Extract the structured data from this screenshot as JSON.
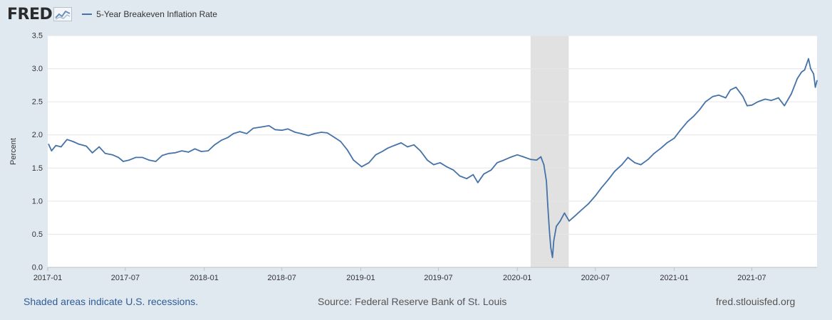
{
  "header": {
    "logo_text": "FRED",
    "legend_label": "5-Year Breakeven Inflation Rate"
  },
  "footer": {
    "recession_note": "Shaded areas indicate U.S. recessions.",
    "source": "Source: Federal Reserve Bank of St. Louis",
    "site": "fred.stlouisfed.org"
  },
  "colors": {
    "background": "#e1e9f0",
    "plot_background": "#ffffff",
    "series": "#4572a7",
    "recession_shade": "#e1e1e1",
    "link": "#2f5b97"
  },
  "chart_data": {
    "type": "line",
    "title": "",
    "xlabel": "",
    "ylabel": "Percent",
    "ylim": [
      0,
      3.5
    ],
    "yticks": [
      "0.0",
      "0.5",
      "1.0",
      "1.5",
      "2.0",
      "2.5",
      "3.0",
      "3.5"
    ],
    "xlim": [
      "2017-01-01",
      "2021-11-30"
    ],
    "xticks": [
      "2017-01",
      "2017-07",
      "2018-01",
      "2018-07",
      "2019-01",
      "2019-07",
      "2020-01",
      "2020-07",
      "2021-01",
      "2021-07"
    ],
    "grid": "horizontal",
    "legend": "top-left",
    "recessions": [
      {
        "start": "2020-02-01",
        "end": "2020-04-30"
      }
    ],
    "series": [
      {
        "name": "5-Year Breakeven Inflation Rate",
        "color": "#4572a7",
        "x": [
          "2017-01-03",
          "2017-01-10",
          "2017-01-20",
          "2017-02-01",
          "2017-02-15",
          "2017-03-01",
          "2017-03-15",
          "2017-04-01",
          "2017-04-15",
          "2017-05-01",
          "2017-05-15",
          "2017-06-01",
          "2017-06-15",
          "2017-06-26",
          "2017-07-10",
          "2017-07-25",
          "2017-08-10",
          "2017-08-25",
          "2017-09-10",
          "2017-09-25",
          "2017-10-10",
          "2017-10-25",
          "2017-11-10",
          "2017-11-25",
          "2017-12-10",
          "2017-12-25",
          "2018-01-10",
          "2018-01-25",
          "2018-02-10",
          "2018-02-25",
          "2018-03-10",
          "2018-03-25",
          "2018-04-10",
          "2018-04-25",
          "2018-05-15",
          "2018-06-01",
          "2018-06-15",
          "2018-07-01",
          "2018-07-15",
          "2018-08-01",
          "2018-08-15",
          "2018-09-01",
          "2018-09-15",
          "2018-10-01",
          "2018-10-15",
          "2018-11-01",
          "2018-11-15",
          "2018-12-01",
          "2018-12-15",
          "2019-01-03",
          "2019-01-20",
          "2019-02-05",
          "2019-02-20",
          "2019-03-05",
          "2019-03-20",
          "2019-04-05",
          "2019-04-20",
          "2019-05-05",
          "2019-05-20",
          "2019-06-05",
          "2019-06-20",
          "2019-07-05",
          "2019-07-20",
          "2019-08-05",
          "2019-08-20",
          "2019-09-05",
          "2019-09-20",
          "2019-10-01",
          "2019-10-15",
          "2019-11-01",
          "2019-11-15",
          "2019-12-01",
          "2019-12-15",
          "2020-01-01",
          "2020-01-15",
          "2020-02-01",
          "2020-02-15",
          "2020-02-25",
          "2020-03-03",
          "2020-03-09",
          "2020-03-12",
          "2020-03-16",
          "2020-03-19",
          "2020-03-23",
          "2020-03-26",
          "2020-04-01",
          "2020-04-10",
          "2020-04-20",
          "2020-05-01",
          "2020-05-15",
          "2020-06-01",
          "2020-06-15",
          "2020-07-01",
          "2020-07-15",
          "2020-08-01",
          "2020-08-15",
          "2020-09-01",
          "2020-09-15",
          "2020-10-01",
          "2020-10-15",
          "2020-11-01",
          "2020-11-15",
          "2020-12-01",
          "2020-12-15",
          "2021-01-01",
          "2021-01-15",
          "2021-02-01",
          "2021-02-15",
          "2021-03-01",
          "2021-03-15",
          "2021-04-01",
          "2021-04-15",
          "2021-05-01",
          "2021-05-12",
          "2021-05-25",
          "2021-06-10",
          "2021-06-20",
          "2021-07-01",
          "2021-07-15",
          "2021-08-01",
          "2021-08-15",
          "2021-09-01",
          "2021-09-15",
          "2021-10-01",
          "2021-10-15",
          "2021-10-25",
          "2021-11-01",
          "2021-11-10",
          "2021-11-15",
          "2021-11-22",
          "2021-11-26",
          "2021-11-30"
        ],
        "values": [
          1.86,
          1.76,
          1.84,
          1.82,
          1.93,
          1.9,
          1.86,
          1.83,
          1.73,
          1.82,
          1.72,
          1.7,
          1.66,
          1.6,
          1.62,
          1.66,
          1.66,
          1.62,
          1.6,
          1.69,
          1.72,
          1.73,
          1.76,
          1.74,
          1.79,
          1.75,
          1.76,
          1.85,
          1.92,
          1.96,
          2.02,
          2.05,
          2.02,
          2.1,
          2.12,
          2.14,
          2.08,
          2.07,
          2.09,
          2.04,
          2.02,
          1.99,
          2.02,
          2.04,
          2.03,
          1.96,
          1.9,
          1.77,
          1.62,
          1.52,
          1.58,
          1.7,
          1.75,
          1.8,
          1.84,
          1.88,
          1.82,
          1.85,
          1.76,
          1.62,
          1.55,
          1.58,
          1.52,
          1.47,
          1.38,
          1.34,
          1.4,
          1.28,
          1.41,
          1.47,
          1.58,
          1.62,
          1.66,
          1.7,
          1.67,
          1.63,
          1.62,
          1.67,
          1.55,
          1.3,
          0.95,
          0.55,
          0.3,
          0.15,
          0.4,
          0.62,
          0.7,
          0.82,
          0.7,
          0.78,
          0.88,
          0.96,
          1.08,
          1.2,
          1.33,
          1.45,
          1.55,
          1.66,
          1.58,
          1.55,
          1.63,
          1.72,
          1.8,
          1.88,
          1.95,
          2.07,
          2.2,
          2.28,
          2.38,
          2.5,
          2.58,
          2.6,
          2.56,
          2.68,
          2.72,
          2.58,
          2.44,
          2.45,
          2.5,
          2.54,
          2.52,
          2.56,
          2.44,
          2.62,
          2.85,
          2.95,
          2.98,
          3.15,
          3.0,
          2.92,
          2.72,
          2.82
        ]
      }
    ]
  }
}
